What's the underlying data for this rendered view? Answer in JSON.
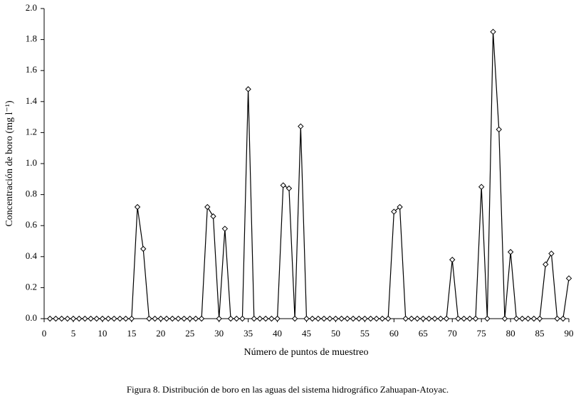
{
  "chart_data": {
    "type": "line",
    "xlabel": "Número de puntos de muestreo",
    "ylabel": "Concentración de boro (mg l⁻¹)",
    "caption": "Figura 8. Distribución de boro en las aguas del sistema hidrográfico Zahuapan-Atoyac.",
    "x": [
      1,
      2,
      3,
      4,
      5,
      6,
      7,
      8,
      9,
      10,
      11,
      12,
      13,
      14,
      15,
      16,
      17,
      18,
      19,
      20,
      21,
      22,
      23,
      24,
      25,
      26,
      27,
      28,
      29,
      30,
      31,
      32,
      33,
      34,
      35,
      36,
      37,
      38,
      39,
      40,
      41,
      42,
      43,
      44,
      45,
      46,
      47,
      48,
      49,
      50,
      51,
      52,
      53,
      54,
      55,
      56,
      57,
      58,
      59,
      60,
      61,
      62,
      63,
      64,
      65,
      66,
      67,
      68,
      69,
      70,
      71,
      72,
      73,
      74,
      75,
      76,
      77,
      78,
      79,
      80,
      81,
      82,
      83,
      84,
      85,
      86,
      87,
      88,
      89,
      90
    ],
    "series": [
      {
        "color": "#000000",
        "values": [
          0,
          0,
          0,
          0,
          0,
          0,
          0,
          0,
          0,
          0,
          0,
          0,
          0,
          0,
          0,
          0.72,
          0.45,
          0,
          0,
          0,
          0,
          0,
          0,
          0,
          0,
          0,
          0,
          0.72,
          0.66,
          0,
          0.58,
          0,
          0,
          0,
          1.48,
          0,
          0,
          0,
          0,
          0,
          0.86,
          0.84,
          0,
          1.24,
          0,
          0,
          0,
          0,
          0,
          0,
          0,
          0,
          0,
          0,
          0,
          0,
          0,
          0,
          0,
          0.69,
          0.72,
          0,
          0,
          0,
          0,
          0,
          0,
          0,
          0,
          0.38,
          0,
          0,
          0,
          0,
          0.85,
          0,
          1.85,
          1.22,
          0,
          0.43,
          0,
          0,
          0,
          0,
          0,
          0.35,
          0.42,
          0,
          0,
          0.26
        ]
      }
    ],
    "xlim": [
      0,
      90
    ],
    "xticks": [
      0,
      5,
      10,
      15,
      20,
      25,
      30,
      35,
      40,
      45,
      50,
      55,
      60,
      65,
      70,
      75,
      80,
      85,
      90
    ],
    "ylim": [
      0,
      2
    ],
    "yticks": [
      {
        "value": 0,
        "label": "0.0"
      },
      0.2,
      0.4,
      0.6,
      0.8,
      {
        "value": 1,
        "label": "1.0"
      },
      1.2,
      1.4,
      1.6,
      1.8,
      {
        "value": 2,
        "label": "2.0"
      }
    ],
    "grid": false
  }
}
